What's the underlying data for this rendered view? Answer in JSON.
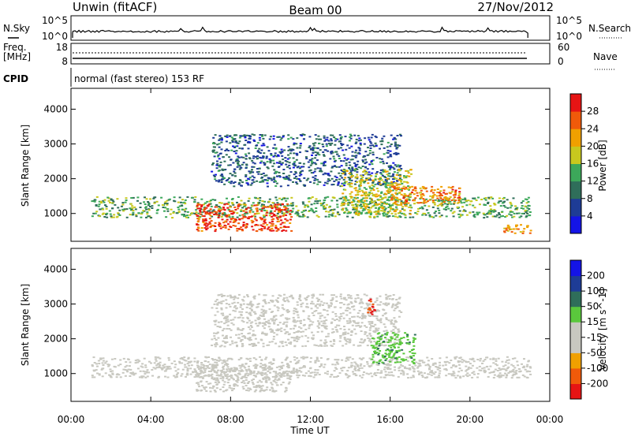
{
  "header": {
    "station": "Unwin (fitACF)",
    "beam": "Beam 00",
    "date": "27/Nov/2012"
  },
  "summary_panels": {
    "nsky_label": "N.Sky",
    "nsearch_label": "N.Search",
    "count_ticks": [
      "10^5",
      "10^0"
    ],
    "freq_label_line1": "Freq.",
    "freq_label_line2": "[MHz]",
    "freq_ticks": [
      "18",
      "8"
    ],
    "nave_label": "Nave",
    "nave_ticks": [
      "60",
      "0"
    ],
    "cpid_label": "CPID",
    "cpid_value": "normal (fast stereo) 153 RF"
  },
  "x_axis": {
    "label": "Time UT",
    "ticks": [
      "00:00",
      "04:00",
      "08:00",
      "12:00",
      "16:00",
      "20:00",
      "00:00"
    ]
  },
  "colors": {
    "power_scale": [
      "#1414e6",
      "#1e3c96",
      "#2f6e5a",
      "#3ca85a",
      "#c8c81e",
      "#f0a000",
      "#f05a0a",
      "#e61414"
    ],
    "velocity_scale": [
      "#e61414",
      "#f05a0a",
      "#f0a000",
      "#c8c8c0",
      "#c8c8c0",
      "#5ac83c",
      "#2f6e5a",
      "#1e3c96",
      "#1414e6"
    ]
  },
  "chart_data": [
    {
      "type": "heatmap",
      "title": "",
      "xlabel": "",
      "ylabel": "Slant Range [km]",
      "x_range": [
        "00:00",
        "24:00"
      ],
      "ylim": [
        200,
        4600
      ],
      "yticks": [
        "1000",
        "2000",
        "3000",
        "4000"
      ],
      "colorbar": {
        "label": "Power [dB]",
        "ticks": [
          "4",
          "8",
          "12",
          "16",
          "20",
          "24",
          "28"
        ],
        "range": [
          0,
          32
        ]
      },
      "scatter_regions": [
        {
          "x_hours": [
            1.0,
            23.0
          ],
          "slant_range_km": [
            900,
            1500
          ],
          "power_db": 14
        },
        {
          "x_hours": [
            6.2,
            11.0
          ],
          "slant_range_km": [
            500,
            1300
          ],
          "power_db": 28
        },
        {
          "x_hours": [
            7.0,
            16.5
          ],
          "slant_range_km": [
            1800,
            3300
          ],
          "power_db": 8
        },
        {
          "x_hours": [
            13.5,
            17.0
          ],
          "slant_range_km": [
            1000,
            2300
          ],
          "power_db": 18
        },
        {
          "x_hours": [
            16.0,
            19.5
          ],
          "slant_range_km": [
            1300,
            1800
          ],
          "power_db": 24
        },
        {
          "x_hours": [
            21.5,
            23.0
          ],
          "slant_range_km": [
            450,
            700
          ],
          "power_db": 22
        }
      ]
    },
    {
      "type": "heatmap",
      "title": "",
      "xlabel": "Time UT",
      "ylabel": "Slant Range [km]",
      "x_range": [
        "00:00",
        "24:00"
      ],
      "ylim": [
        200,
        4600
      ],
      "yticks": [
        "1000",
        "2000",
        "3000",
        "4000"
      ],
      "colorbar": {
        "label": "Velocity [m s^-1]",
        "ticks": [
          "-200",
          "-100",
          "-50",
          "-15",
          "15",
          "50",
          "100",
          "200"
        ],
        "range": [
          -250,
          250
        ]
      },
      "scatter_regions": [
        {
          "x_hours": [
            1.0,
            23.0
          ],
          "slant_range_km": [
            900,
            1500
          ],
          "velocity_ms": 0
        },
        {
          "x_hours": [
            6.2,
            11.0
          ],
          "slant_range_km": [
            500,
            1300
          ],
          "velocity_ms": 0
        },
        {
          "x_hours": [
            7.0,
            16.5
          ],
          "slant_range_km": [
            1800,
            3300
          ],
          "velocity_ms": -30
        },
        {
          "x_hours": [
            14.8,
            15.2
          ],
          "slant_range_km": [
            2700,
            3200
          ],
          "velocity_ms": -200
        },
        {
          "x_hours": [
            15.0,
            17.2
          ],
          "slant_range_km": [
            1300,
            2200
          ],
          "velocity_ms": 40
        }
      ]
    }
  ]
}
